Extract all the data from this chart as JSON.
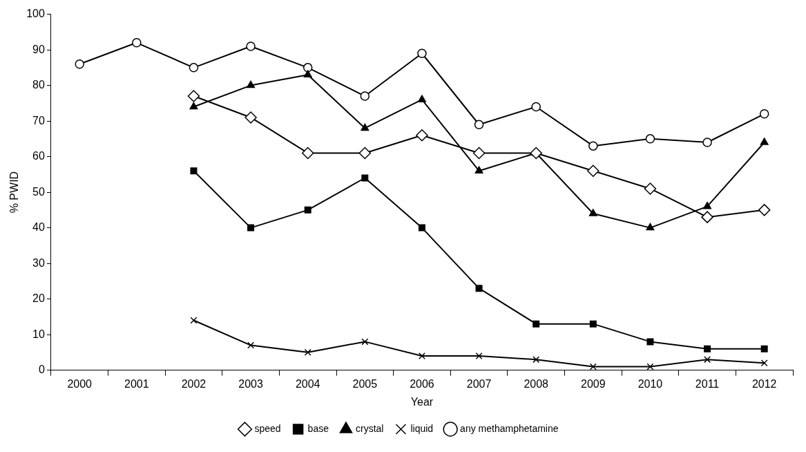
{
  "chart_data": {
    "type": "line",
    "xlabel": "Year",
    "ylabel": "% PWID",
    "categories": [
      "2000",
      "2001",
      "2002",
      "2003",
      "2004",
      "2005",
      "2006",
      "2007",
      "2008",
      "2009",
      "2010",
      "2011",
      "2012"
    ],
    "ylim": [
      0,
      100
    ],
    "yticks": [
      0,
      10,
      20,
      30,
      40,
      50,
      60,
      70,
      80,
      90,
      100
    ],
    "grid": false,
    "legend": "bottom",
    "line_style": "solid",
    "series": [
      {
        "name": "speed",
        "color": "#000000",
        "marker": "diamond",
        "values": [
          null,
          null,
          77,
          71,
          61,
          61,
          66,
          61,
          61,
          56,
          51,
          43,
          45
        ]
      },
      {
        "name": "base",
        "color": "#000000",
        "marker": "square",
        "values": [
          null,
          null,
          56,
          40,
          45,
          54,
          40,
          23,
          13,
          13,
          8,
          6,
          6
        ]
      },
      {
        "name": "crystal",
        "color": "#000000",
        "marker": "triangle",
        "values": [
          null,
          null,
          74,
          80,
          83,
          68,
          76,
          56,
          61,
          44,
          40,
          46,
          64
        ]
      },
      {
        "name": "liquid",
        "color": "#000000",
        "marker": "cross",
        "values": [
          null,
          null,
          14,
          7,
          5,
          8,
          4,
          4,
          3,
          1,
          1,
          3,
          2
        ]
      },
      {
        "name": "any methamphetamine",
        "color": "#000000",
        "marker": "circle",
        "values": [
          86,
          92,
          85,
          91,
          85,
          77,
          89,
          69,
          74,
          63,
          65,
          64,
          72
        ]
      }
    ]
  }
}
